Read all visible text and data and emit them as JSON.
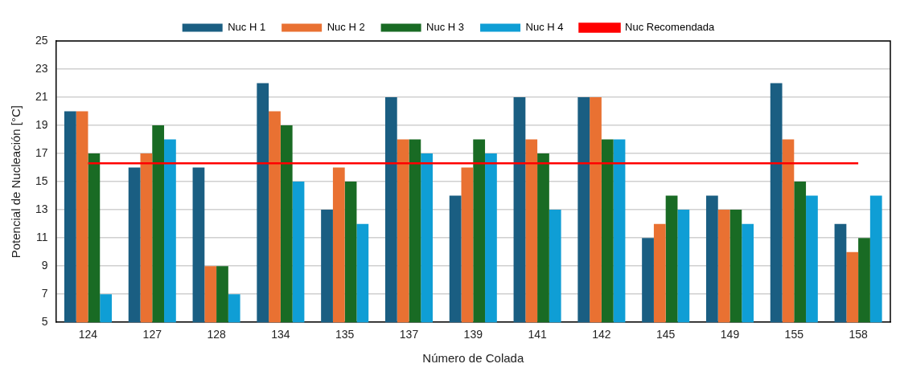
{
  "chart_data": {
    "type": "bar",
    "xlabel": "Número de Colada",
    "ylabel": "Potencial de Nucleación [°C]",
    "categories": [
      "124",
      "127",
      "128",
      "134",
      "135",
      "137",
      "139",
      "141",
      "142",
      "145",
      "149",
      "155",
      "158"
    ],
    "series": [
      {
        "name": "Nuc H 1",
        "color": "#1a5e82",
        "values": [
          20,
          16,
          16,
          22,
          13,
          21,
          14,
          21,
          21,
          11,
          14,
          22,
          12
        ]
      },
      {
        "name": "Nuc H 2",
        "color": "#e97132",
        "values": [
          20,
          17,
          9,
          20,
          16,
          18,
          16,
          18,
          21,
          12,
          13,
          18,
          10
        ]
      },
      {
        "name": "Nuc H 3",
        "color": "#196b24",
        "values": [
          17,
          19,
          9,
          19,
          15,
          18,
          18,
          17,
          18,
          14,
          13,
          15,
          11
        ]
      },
      {
        "name": "Nuc H 4",
        "color": "#0f9ed5",
        "values": [
          7,
          18,
          7,
          15,
          12,
          17,
          17,
          13,
          18,
          13,
          12,
          14,
          14
        ]
      },
      {
        "name": "Nuc Recomendada",
        "type": "line",
        "color": "#ff0000",
        "marker": "none",
        "values": [
          16.3,
          16.3,
          16.3,
          16.3,
          16.3,
          16.3,
          16.3,
          16.3,
          16.3,
          16.3,
          16.3,
          16.3,
          16.3
        ]
      }
    ],
    "ylim": [
      5,
      25
    ],
    "yticks": [
      5,
      7,
      9,
      11,
      13,
      15,
      17,
      19,
      21,
      23,
      25
    ],
    "grid": "y",
    "legend": "top"
  }
}
